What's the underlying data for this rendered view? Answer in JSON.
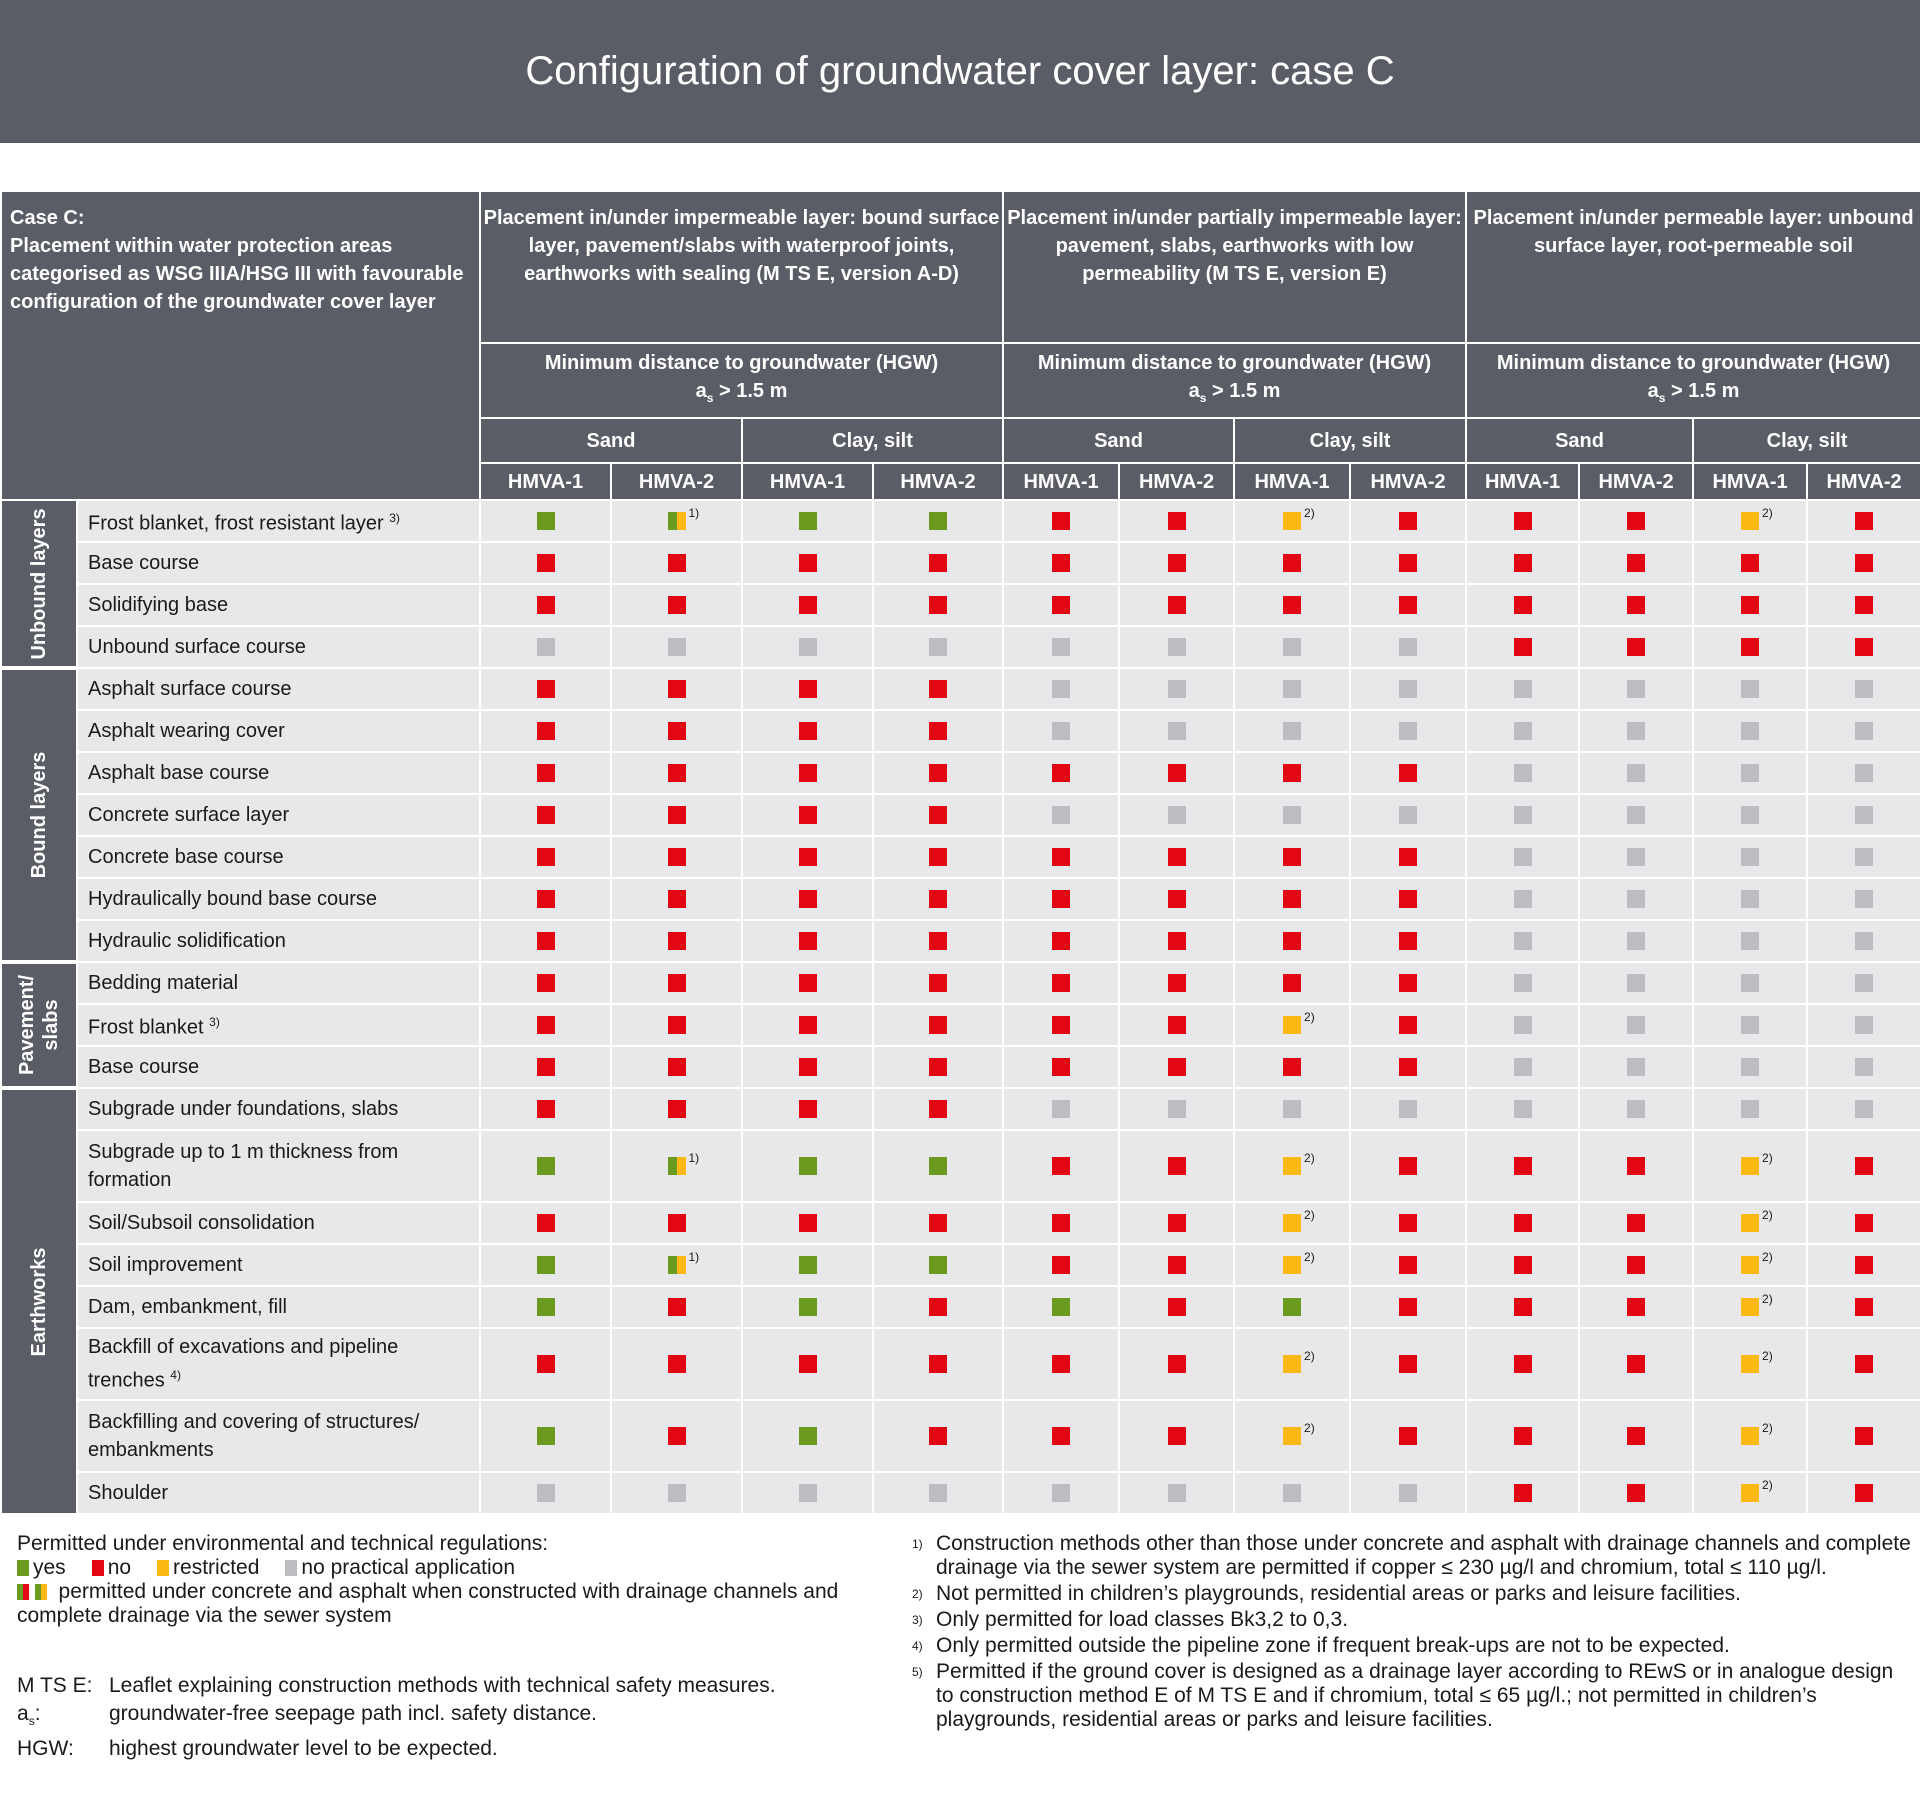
{
  "title": "Configuration of groundwater cover layer: case C",
  "colors": {
    "yes": "#6a9a1f",
    "no": "#e30613",
    "restricted": "#fdb913",
    "no_practical_application": "#bdbdc1",
    "header": "#5a5d65"
  },
  "header": {
    "case_title": "Case C:",
    "case_text": "Placement within water protection areas categorised as WSG IIIA/HSG III with favourable configuration of the groundwater cover layer",
    "placements": [
      "Placement in/under impermeable layer: bound surface layer, pavement/slabs with waterproof joints, earthworks with sealing (M TS E, version A-D)",
      "Placement in/under partially impermeable layer: pavement, slabs, earthworks with low permeability (M TS E, version E)",
      "Placement in/under permeable layer: unbound surface layer, root-permeable soil"
    ],
    "distance_line1": "Minimum distance to groundwater (HGW)",
    "distance_a": "a",
    "distance_sub": "s",
    "distance_value": " > 1.5 m",
    "soils": [
      "Sand",
      "Clay, silt"
    ],
    "classes": [
      "HMVA-1",
      "HMVA-2"
    ]
  },
  "groups": [
    {
      "label": "Unbound layers",
      "rows": [
        {
          "label": "Frost blanket, frost resistant layer",
          "sup": "3)",
          "cells": [
            "g",
            "gy:1)",
            "g",
            "g",
            "r",
            "r",
            "y:2)",
            "r",
            "r",
            "r",
            "y:2)",
            "r"
          ]
        },
        {
          "label": "Base course",
          "cells": [
            "r",
            "r",
            "r",
            "r",
            "r",
            "r",
            "r",
            "r",
            "r",
            "r",
            "r",
            "r"
          ]
        },
        {
          "label": "Solidifying base",
          "cells": [
            "r",
            "r",
            "r",
            "r",
            "r",
            "r",
            "r",
            "r",
            "r",
            "r",
            "r",
            "r"
          ]
        },
        {
          "label": "Unbound surface course",
          "cells": [
            "n",
            "n",
            "n",
            "n",
            "n",
            "n",
            "n",
            "n",
            "r",
            "r",
            "r",
            "r"
          ]
        }
      ]
    },
    {
      "label": "Bound layers",
      "rows": [
        {
          "label": "Asphalt surface course",
          "cells": [
            "r",
            "r",
            "r",
            "r",
            "n",
            "n",
            "n",
            "n",
            "n",
            "n",
            "n",
            "n"
          ]
        },
        {
          "label": "Asphalt wearing cover",
          "cells": [
            "r",
            "r",
            "r",
            "r",
            "n",
            "n",
            "n",
            "n",
            "n",
            "n",
            "n",
            "n"
          ]
        },
        {
          "label": "Asphalt base course",
          "cells": [
            "r",
            "r",
            "r",
            "r",
            "r",
            "r",
            "r",
            "r",
            "n",
            "n",
            "n",
            "n"
          ]
        },
        {
          "label": "Concrete surface layer",
          "cells": [
            "r",
            "r",
            "r",
            "r",
            "n",
            "n",
            "n",
            "n",
            "n",
            "n",
            "n",
            "n"
          ]
        },
        {
          "label": "Concrete base course",
          "cells": [
            "r",
            "r",
            "r",
            "r",
            "r",
            "r",
            "r",
            "r",
            "n",
            "n",
            "n",
            "n"
          ]
        },
        {
          "label": "Hydraulically bound base course",
          "cells": [
            "r",
            "r",
            "r",
            "r",
            "r",
            "r",
            "r",
            "r",
            "n",
            "n",
            "n",
            "n"
          ]
        },
        {
          "label": "Hydraulic solidification",
          "cells": [
            "r",
            "r",
            "r",
            "r",
            "r",
            "r",
            "r",
            "r",
            "n",
            "n",
            "n",
            "n"
          ]
        }
      ]
    },
    {
      "label": "Pavement/ slabs",
      "rows": [
        {
          "label": "Bedding material",
          "cells": [
            "r",
            "r",
            "r",
            "r",
            "r",
            "r",
            "r",
            "r",
            "n",
            "n",
            "n",
            "n"
          ]
        },
        {
          "label": "Frost blanket",
          "sup": "3)",
          "cells": [
            "r",
            "r",
            "r",
            "r",
            "r",
            "r",
            "y:2)",
            "r",
            "n",
            "n",
            "n",
            "n"
          ]
        },
        {
          "label": "Base course",
          "cells": [
            "r",
            "r",
            "r",
            "r",
            "r",
            "r",
            "r",
            "r",
            "n",
            "n",
            "n",
            "n"
          ]
        }
      ]
    },
    {
      "label": "Earthworks",
      "rows": [
        {
          "label": "Subgrade under foundations, slabs",
          "cells": [
            "r",
            "r",
            "r",
            "r",
            "n",
            "n",
            "n",
            "n",
            "n",
            "n",
            "n",
            "n"
          ]
        },
        {
          "label": "Subgrade up to 1 m thickness from formation",
          "tall": true,
          "cells": [
            "g",
            "gy:1)",
            "g",
            "g",
            "r",
            "r",
            "y:2)",
            "r",
            "r",
            "r",
            "y:2)",
            "r"
          ]
        },
        {
          "label": "Soil/Subsoil consolidation",
          "cells": [
            "r",
            "r",
            "r",
            "r",
            "r",
            "r",
            "y:2)",
            "r",
            "r",
            "r",
            "y:2)",
            "r"
          ]
        },
        {
          "label": "Soil improvement",
          "cells": [
            "g",
            "gy:1)",
            "g",
            "g",
            "r",
            "r",
            "y:2)",
            "r",
            "r",
            "r",
            "y:2)",
            "r"
          ]
        },
        {
          "label": "Dam, embankment, fill",
          "cells": [
            "g",
            "r",
            "g",
            "r",
            "g",
            "r",
            "g",
            "r",
            "r",
            "r",
            "y:2)",
            "r"
          ]
        },
        {
          "label": "Backfill of excavations and pipeline trenches",
          "sup": "4)",
          "tall": true,
          "cells": [
            "r",
            "r",
            "r",
            "r",
            "r",
            "r",
            "y:2)",
            "r",
            "r",
            "r",
            "y:2)",
            "r"
          ]
        },
        {
          "label": "Backfilling and covering of structures/ embankments",
          "tall": true,
          "cells": [
            "g",
            "r",
            "g",
            "r",
            "r",
            "r",
            "y:2)",
            "r",
            "r",
            "r",
            "y:2)",
            "r"
          ]
        },
        {
          "label": "Shoulder",
          "cells": [
            "n",
            "n",
            "n",
            "n",
            "n",
            "n",
            "n",
            "n",
            "r",
            "r",
            "y:2)",
            "r"
          ]
        }
      ]
    }
  ],
  "legend": {
    "intro": "Permitted under environmental and technical regulations:",
    "items": [
      {
        "code": "g",
        "label": "yes"
      },
      {
        "code": "r",
        "label": "no"
      },
      {
        "code": "y",
        "label": "restricted"
      },
      {
        "code": "n",
        "label": "no practical application"
      }
    ],
    "split_text": "permitted under concrete and asphalt when constructed with drainage channels and complete drainage via the sewer system"
  },
  "definitions": [
    {
      "key": "M TS E:",
      "text": "Leaflet explaining construction methods with technical safety measures."
    },
    {
      "key": "as:",
      "text": "groundwater-free seepage path incl. safety distance."
    },
    {
      "key": "HGW:",
      "text": "highest groundwater level to be expected."
    }
  ],
  "footnotes": [
    {
      "mark": "1)",
      "text": "Construction methods other than those under concrete and asphalt with drainage channels and complete drainage via the sewer system are permitted if copper ≤ 230 µg/l and chromium, total ≤ 110 µg/l."
    },
    {
      "mark": "2)",
      "text": "Not permitted in children’s playgrounds, residential areas or parks and leisure facilities."
    },
    {
      "mark": "3)",
      "text": "Only permitted for load classes Bk3,2 to 0,3."
    },
    {
      "mark": "4)",
      "text": "Only permitted outside the pipeline zone if frequent break-ups are not to be expected."
    },
    {
      "mark": "5)",
      "text": "Permitted if the ground cover is designed as a drainage layer according to REwS or in analogue design to construction method E of M TS E and if chromium, total ≤ 65 µg/l.; not permitted in children’s playgrounds, residential areas or parks and leisure facilities."
    }
  ]
}
